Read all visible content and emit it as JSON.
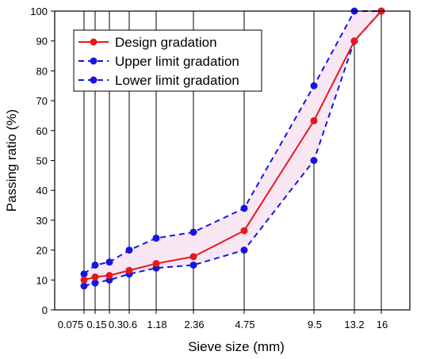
{
  "chart_data": {
    "type": "line",
    "xlabel": "Sieve size (mm)",
    "ylabel": "Passing ratio (%)",
    "ylim": [
      0,
      100
    ],
    "y_ticks": [
      0,
      10,
      20,
      30,
      40,
      50,
      60,
      70,
      80,
      90,
      100
    ],
    "categories": [
      "0.075",
      "0.15",
      "0.3",
      "0.6",
      "1.18",
      "2.36",
      "4.75",
      "9.5",
      "13.2",
      "16"
    ],
    "x_tick_labels": [
      "0.075",
      "0.15",
      "0.3",
      "0.6",
      "1.18",
      "2.36",
      "4.75",
      "9.5",
      "13.2",
      "16"
    ],
    "grid": "vertical",
    "legend_position": "top-left",
    "series": [
      {
        "name": "Design gradation",
        "color": "#e31a1c",
        "style": "solid",
        "values": [
          10,
          11,
          11.5,
          13.2,
          15.5,
          17.8,
          26.5,
          63.3,
          90,
          100
        ]
      },
      {
        "name": "Upper limit gradation",
        "color": "#1414e6",
        "style": "dashed",
        "values": [
          12,
          15,
          16,
          20,
          24,
          26,
          34,
          75,
          100,
          100
        ]
      },
      {
        "name": "Lower limit gradation",
        "color": "#1414e6",
        "style": "dashed",
        "values": [
          8,
          9,
          10,
          12,
          14,
          15,
          20,
          50,
          90,
          100
        ]
      }
    ]
  }
}
